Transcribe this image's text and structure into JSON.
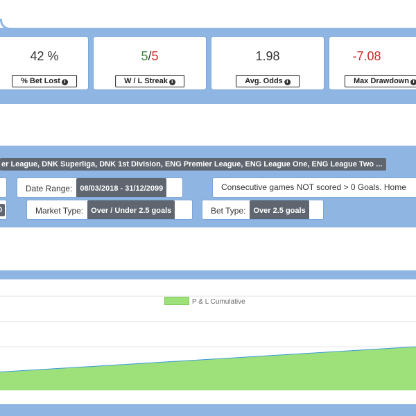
{
  "stats": [
    {
      "value": "42 %",
      "label": "% Bet Lost"
    },
    {
      "value_a": "5",
      "value_sep": "/",
      "value_b": "5",
      "label": "W / L Streak"
    },
    {
      "value": "1.98",
      "label": "Avg. Odds"
    },
    {
      "value": "-7.08",
      "label": "Max Drawdown"
    }
  ],
  "filters": {
    "leagues": "er League, DNK Superliga, DNK 1st Division, ENG Premier League, ENG League One, ENG League Two ...",
    "date_range_label": "Date Range:",
    "date_range_value": "08/03/2018 - 31/12/2099",
    "consecutive_text": "Consecutive games NOT scored > 0 Goals. Home",
    "cut_pill": "0",
    "market_type_label": "Market Type:",
    "market_type_value": "Over / Under 2.5 goals",
    "bet_type_label": "Bet Type:",
    "bet_type_value": "Over 2.5 goals"
  },
  "chart_data": {
    "type": "area",
    "title": "",
    "legend": [
      "P & L Cumulative"
    ],
    "legend_position": "top-center",
    "series": [
      {
        "name": "P & L Cumulative",
        "color": "#9ee07a",
        "line_color": "#3a9ad9",
        "x": [
          0,
          1
        ],
        "values": [
          0.6,
          1.2
        ]
      }
    ],
    "ylim": [
      0,
      2.6
    ],
    "grid": true
  },
  "colors": {
    "band": "#8fb6e3",
    "pill": "#5f6670",
    "negative": "#d02a2a",
    "positive": "#3a8a3a",
    "area_fill": "#9ee07a"
  }
}
